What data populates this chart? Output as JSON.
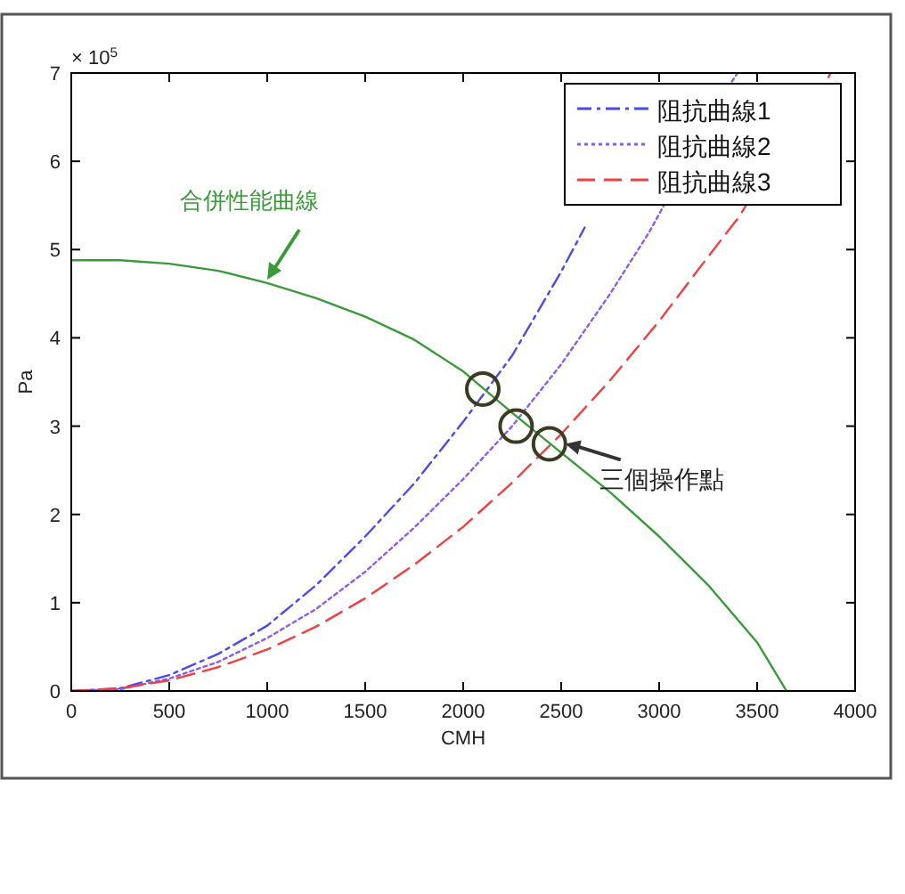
{
  "chart_data": {
    "type": "line",
    "xlabel": "CMH",
    "ylabel": "Pa",
    "xlim": [
      0,
      4000
    ],
    "xticks": [
      0,
      500,
      1000,
      1500,
      2000,
      2500,
      3000,
      3500,
      4000
    ],
    "ylim": [
      0,
      7
    ],
    "yticks": [
      0,
      1,
      2,
      3,
      4,
      5,
      6,
      7
    ],
    "grid": false,
    "legend": "top right",
    "series": [
      {
        "name": "阻抗曲線1",
        "color": "#4a4af0",
        "line_style": "dashdot",
        "x": [
          0,
          250,
          500,
          750,
          1000,
          1250,
          1500,
          1750,
          2000,
          2250,
          2500,
          2620
        ],
        "values": [
          0,
          0.03,
          0.18,
          0.42,
          0.74,
          1.2,
          1.75,
          2.35,
          3.05,
          3.8,
          4.75,
          5.25
        ]
      },
      {
        "name": "阻抗曲線2",
        "color": "#8a5cf0",
        "line_style": "dotted",
        "x": [
          0,
          250,
          500,
          750,
          1000,
          1250,
          1500,
          1750,
          2000,
          2250,
          2500,
          2750,
          2950,
          3370,
          3400
        ],
        "values": [
          0,
          0.02,
          0.14,
          0.33,
          0.6,
          0.93,
          1.35,
          1.85,
          2.4,
          3.0,
          3.7,
          4.5,
          5.2,
          6.9,
          7.0
        ]
      },
      {
        "name": "阻抗曲線3",
        "color": "#f04040",
        "line_style": "dashed",
        "x": [
          0,
          250,
          500,
          750,
          1000,
          1250,
          1500,
          1750,
          2000,
          2250,
          2500,
          2750,
          3000,
          3250,
          3400,
          3850,
          3875
        ],
        "values": [
          0,
          0.03,
          0.12,
          0.27,
          0.47,
          0.73,
          1.05,
          1.43,
          1.86,
          2.36,
          2.91,
          3.52,
          4.19,
          4.92,
          5.35,
          6.9,
          7.0
        ]
      },
      {
        "name": "合併性能曲線",
        "color": "#3a9a3a",
        "line_style": "solid",
        "x": [
          0,
          250,
          500,
          750,
          1000,
          1250,
          1500,
          1750,
          2000,
          2250,
          2500,
          2750,
          3000,
          3250,
          3500,
          3650
        ],
        "values": [
          4.88,
          4.88,
          4.84,
          4.76,
          4.62,
          4.45,
          4.24,
          3.98,
          3.62,
          3.15,
          2.7,
          2.25,
          1.75,
          1.2,
          0.55,
          0
        ]
      },
      {
        "type": "scatter",
        "marker": "circle",
        "color": "#3b3b22",
        "x": [
          2100,
          2270,
          2440
        ],
        "values": [
          3.42,
          3.0,
          2.8
        ]
      }
    ],
    "annotations": [
      "× 10$^{5}$",
      {
        "text": "三個操作點",
        "x": 2440,
        "y": 2.8
      }
    ]
  }
}
